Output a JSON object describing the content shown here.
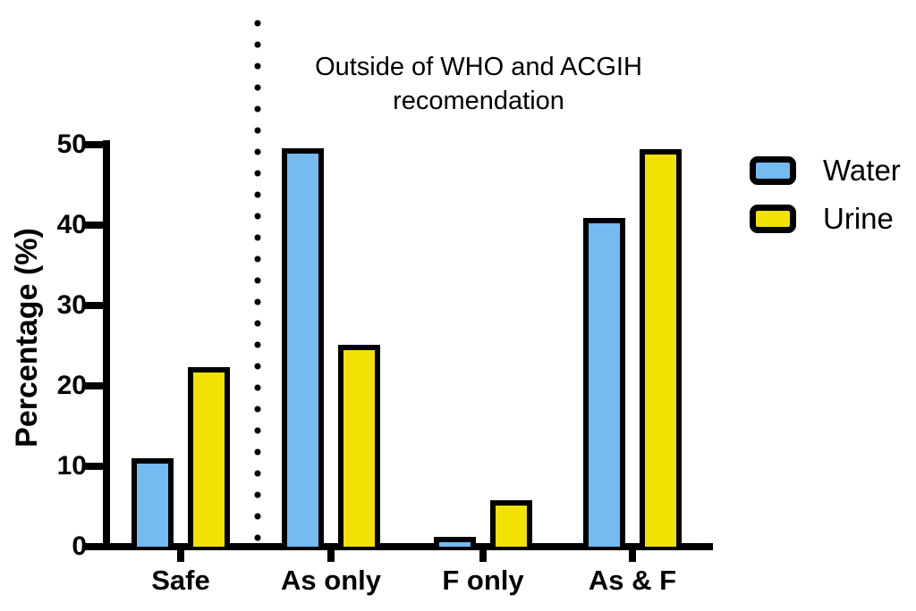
{
  "chart_data": {
    "type": "bar",
    "annotation_line1": "Outside of WHO and ACGIH",
    "annotation_line2": "recomendation",
    "ylabel": "Percentage (%)",
    "categories": [
      "Safe",
      "As only",
      "F only",
      "As & F"
    ],
    "series": [
      {
        "name": "Water",
        "color": "#74BBF2",
        "values": [
          10.3,
          48.9,
          0.6,
          40.2
        ]
      },
      {
        "name": "Urine",
        "color": "#F2E204",
        "values": [
          21.7,
          24.4,
          5.1,
          48.8
        ]
      }
    ],
    "yticks": [
      0,
      10,
      20,
      30,
      40,
      50
    ],
    "ylim": [
      0,
      50
    ],
    "grid": false,
    "legend_position": "right-top",
    "divider": {
      "style": "dotted",
      "after_category": "Safe"
    },
    "bar_border_color": "#000000",
    "axis_color": "#000000"
  }
}
